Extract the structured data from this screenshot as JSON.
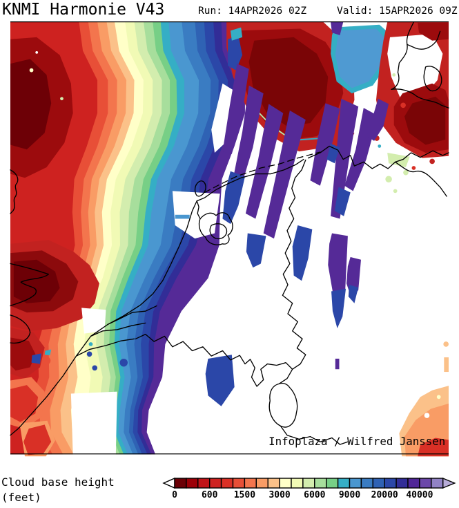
{
  "header": {
    "title": "KNMI Harmonie V43",
    "run": "Run: 14APR2026 02Z",
    "valid": "Valid: 15APR2026 09Z"
  },
  "map": {
    "attribution": "Infoplaza / Wilfred Janssen"
  },
  "legend": {
    "label_line1": "Cloud base height",
    "label_line2": "(feet)",
    "units": "feet",
    "cells": [
      "#6b0006",
      "#9c0008",
      "#c01318",
      "#ce2220",
      "#da3026",
      "#e84f37",
      "#f3754d",
      "#f99c65",
      "#fbc189",
      "#ffffc8",
      "#f1fab5",
      "#d3edae",
      "#a7de9c",
      "#77cf86",
      "#35aec5",
      "#4a97d0",
      "#3a7cc2",
      "#2f62b4",
      "#2b47a8",
      "#322d97",
      "#502697",
      "#6b47a9",
      "#9182c5"
    ],
    "left_arrow_color": "#ffffff",
    "right_arrow_color": "#b7acd8",
    "ticks": [
      {
        "label": "0",
        "boundary": 0
      },
      {
        "label": "600",
        "boundary": 3
      },
      {
        "label": "1500",
        "boundary": 6
      },
      {
        "label": "3000",
        "boundary": 9
      },
      {
        "label": "6000",
        "boundary": 12
      },
      {
        "label": "9000",
        "boundary": 15
      },
      {
        "label": "20000",
        "boundary": 18
      },
      {
        "label": "40000",
        "boundary": 21
      }
    ]
  }
}
